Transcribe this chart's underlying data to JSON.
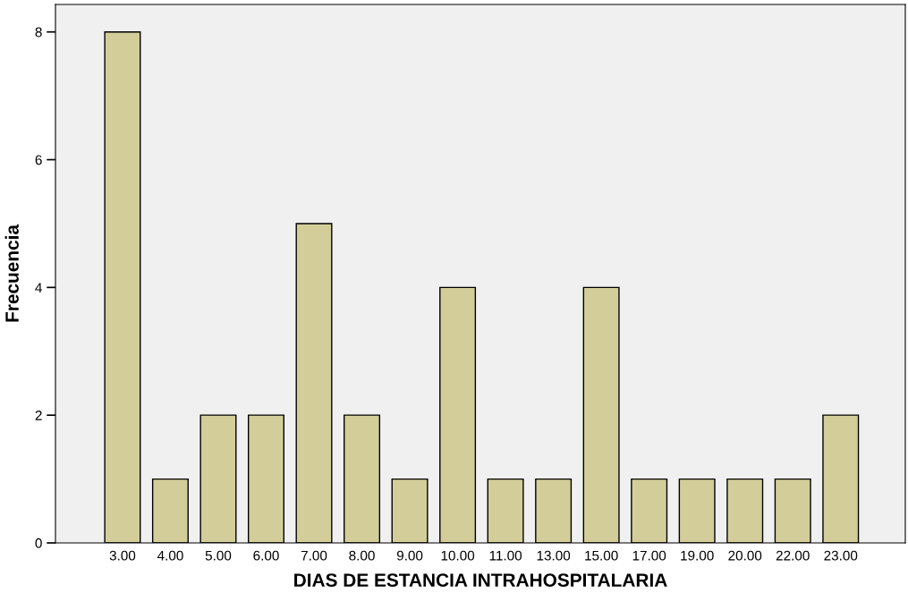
{
  "chart_data": {
    "type": "bar",
    "xlabel": "DIAS DE ESTANCIA INTRAHOSPITALARIA",
    "ylabel": "Frecuencia",
    "categories": [
      "3.00",
      "4.00",
      "5.00",
      "6.00",
      "7.00",
      "8.00",
      "9.00",
      "10.00",
      "11.00",
      "13.00",
      "15.00",
      "17.00",
      "19.00",
      "20.00",
      "22.00",
      "23.00"
    ],
    "values": [
      8,
      1,
      2,
      2,
      5,
      2,
      1,
      4,
      1,
      1,
      4,
      1,
      1,
      1,
      1,
      2
    ],
    "color": "#d3ce99",
    "ylim": [
      0,
      8.43
    ],
    "yticks": [
      0,
      2,
      4,
      6,
      8
    ],
    "grid": false,
    "legend": false
  }
}
